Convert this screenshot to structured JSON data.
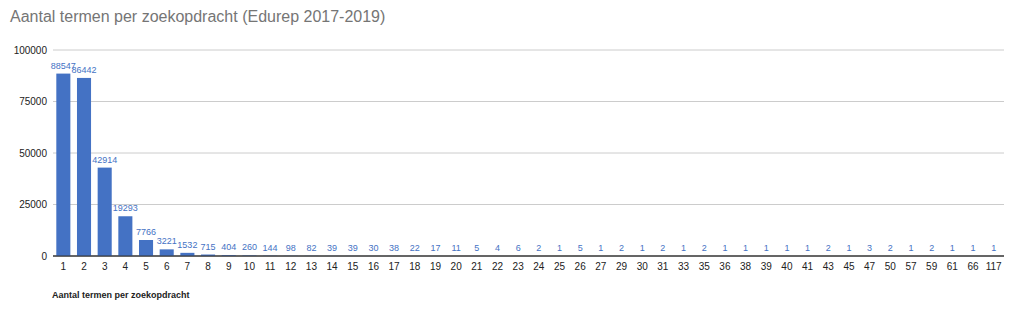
{
  "chart_data": {
    "type": "bar",
    "title": "Aantal termen per zoekopdracht (Edurep 2017-2019)",
    "x_label": "Aantal termen per zoekopdracht",
    "categories": [
      "1",
      "2",
      "3",
      "4",
      "5",
      "6",
      "7",
      "8",
      "9",
      "10",
      "11",
      "12",
      "13",
      "14",
      "15",
      "16",
      "17",
      "18",
      "19",
      "20",
      "21",
      "22",
      "23",
      "24",
      "25",
      "26",
      "27",
      "29",
      "30",
      "31",
      "33",
      "35",
      "36",
      "38",
      "39",
      "40",
      "41",
      "43",
      "45",
      "47",
      "50",
      "57",
      "59",
      "61",
      "66",
      "117"
    ],
    "values": [
      88547,
      86442,
      42914,
      19293,
      7766,
      3221,
      1532,
      715,
      404,
      260,
      144,
      98,
      82,
      39,
      39,
      30,
      38,
      22,
      17,
      11,
      5,
      4,
      6,
      2,
      1,
      5,
      1,
      2,
      1,
      2,
      1,
      2,
      1,
      1,
      1,
      1,
      1,
      2,
      1,
      3,
      2,
      1,
      2,
      1,
      1,
      1
    ],
    "color": "#4472c4",
    "ylim": [
      0,
      100000
    ],
    "yticks": [
      0,
      25000,
      50000,
      75000,
      100000
    ],
    "grid": true,
    "data_labels": true
  }
}
